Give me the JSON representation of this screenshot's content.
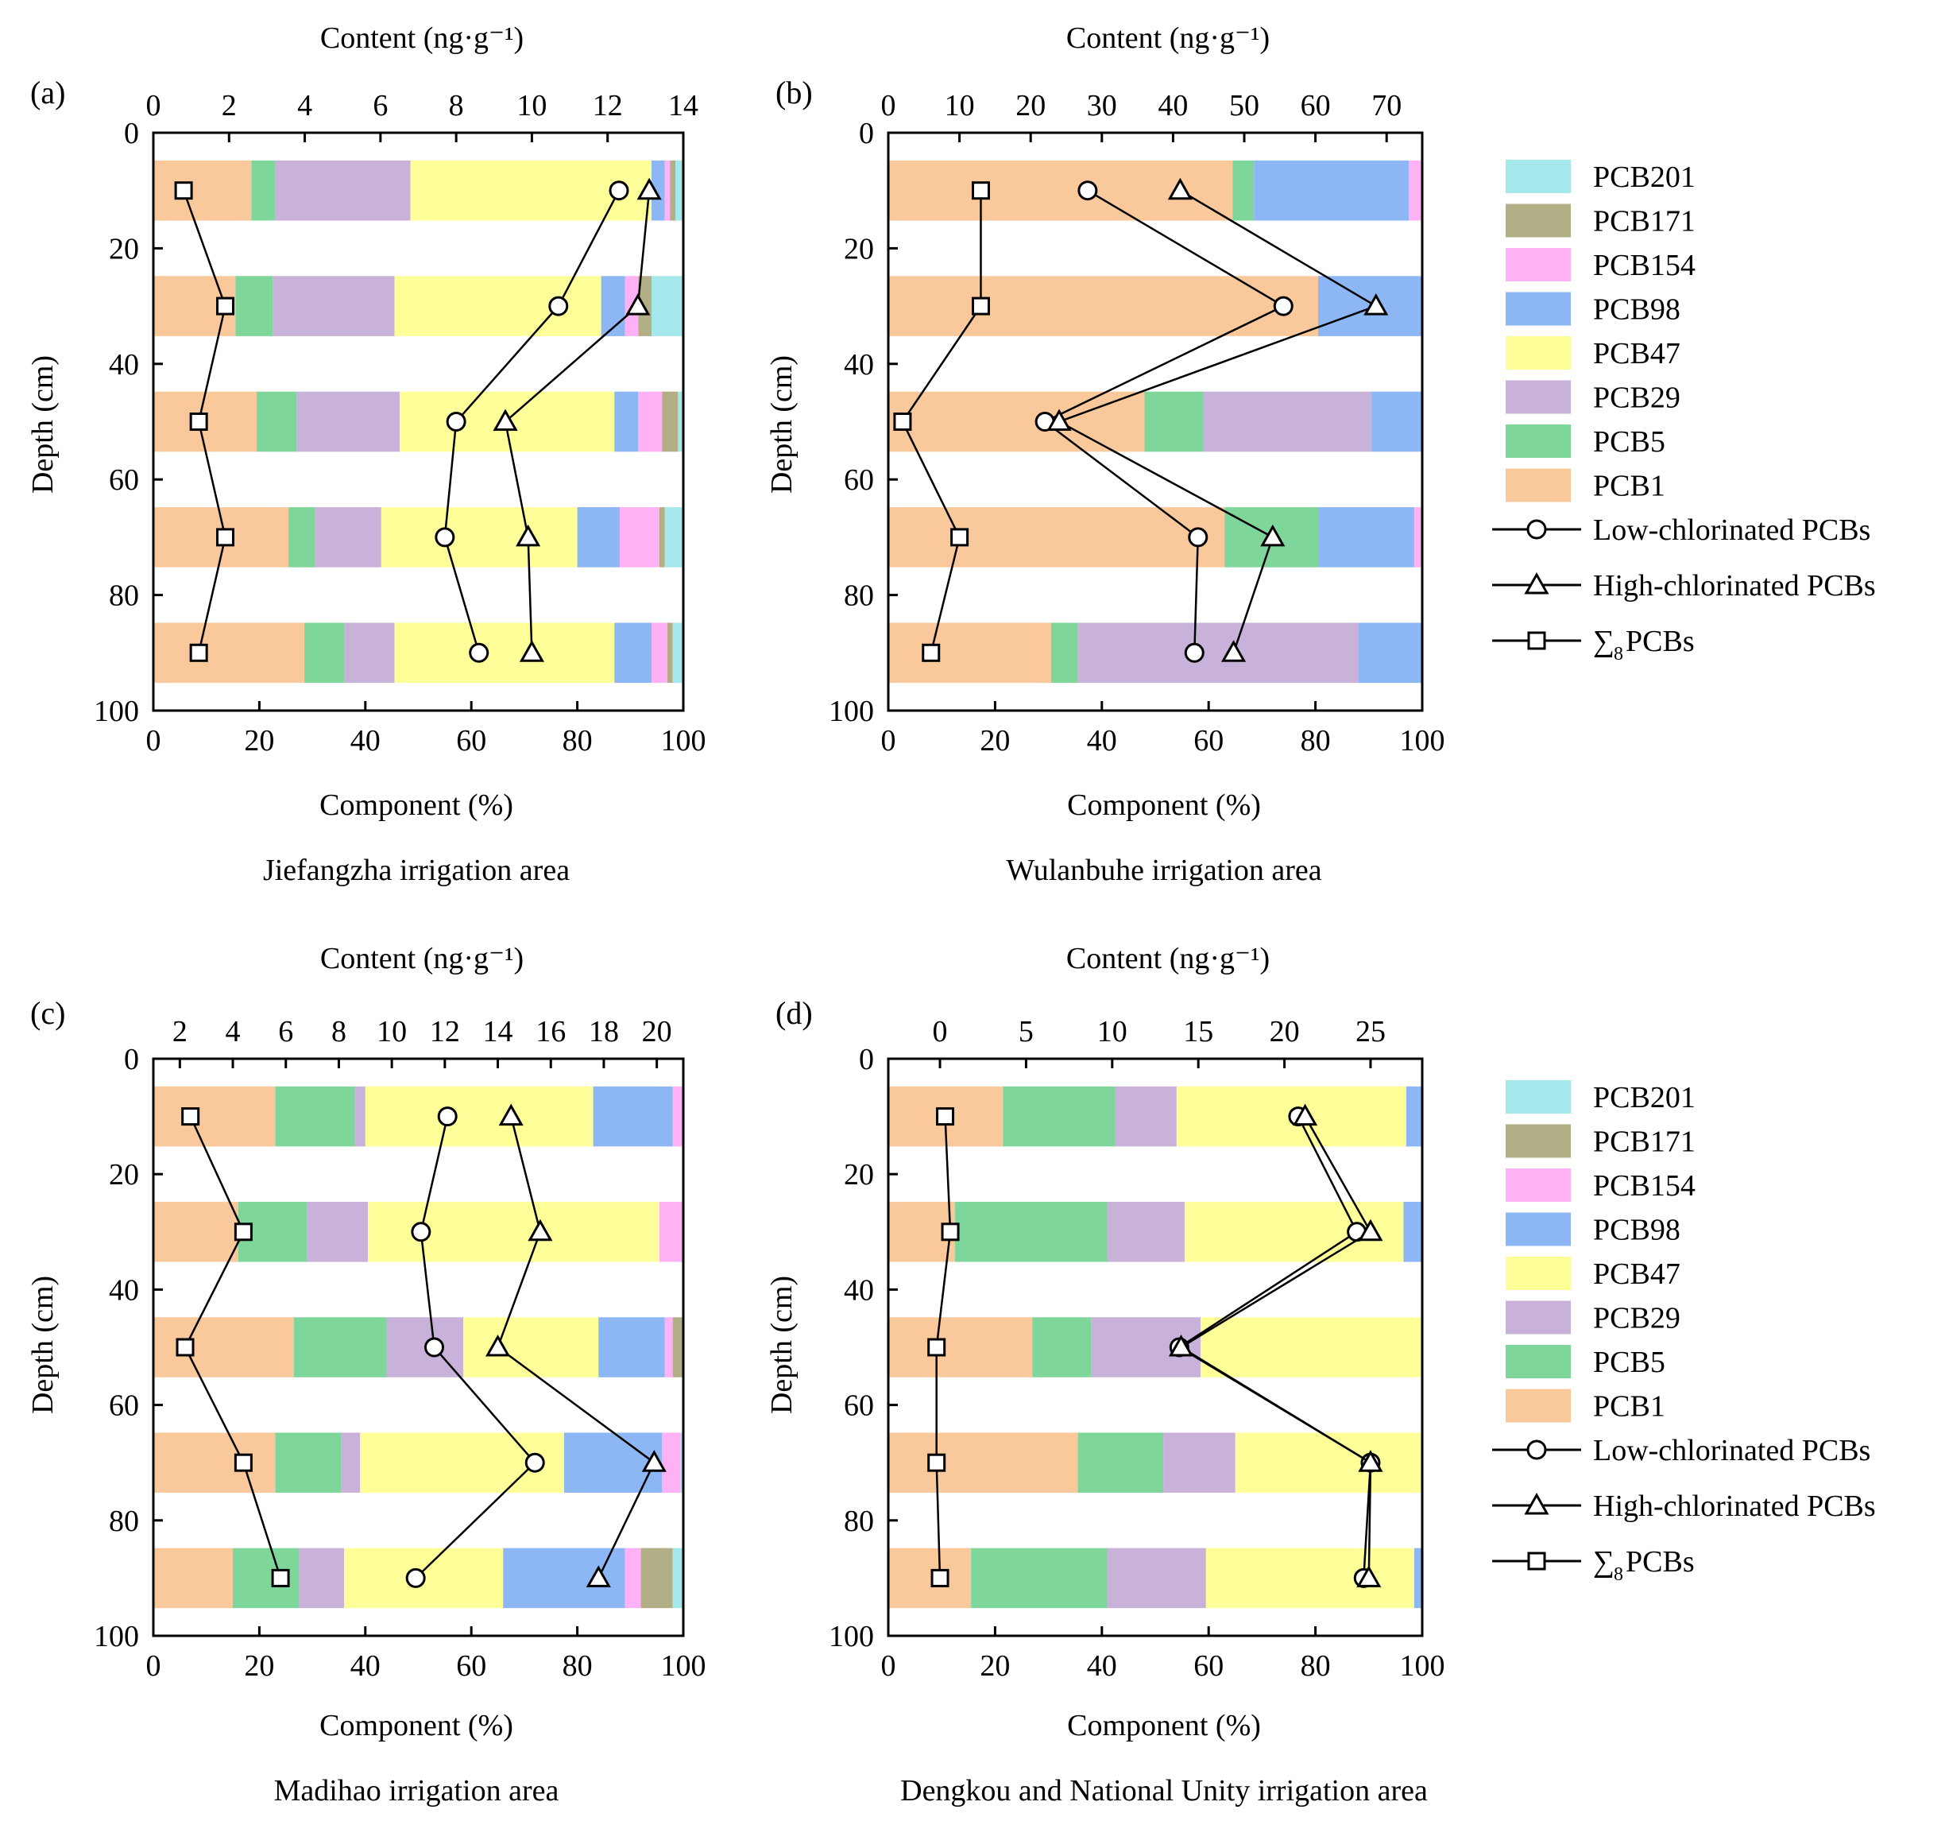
{
  "colors": {
    "PCB1": "#F9C89B",
    "PCB5": "#7FD69A",
    "PCB29": "#C8B2D9",
    "PCB47": "#FFFF9A",
    "PCB98": "#8DB6F4",
    "PCB154": "#FFB1F6",
    "PCB171": "#B2AE86",
    "PCB201": "#A4E8EC"
  },
  "legend": {
    "components": [
      "PCB201",
      "PCB171",
      "PCB154",
      "PCB98",
      "PCB47",
      "PCB29",
      "PCB5",
      "PCB1"
    ],
    "low": "Low-chlorinated PCBs",
    "high": "High-chlorinated PCBs",
    "sum_prefix": "∑",
    "sum_sub": "8",
    "sum_suffix": "PCBs"
  },
  "chart_data": [
    {
      "type": "bar",
      "panel_label": "(a)",
      "title": "Jiefangzha irrigation area",
      "xlabel": "Component (%)",
      "ylabel": "Depth (cm)",
      "top_axis_label": "Content (ng·g⁻¹)",
      "xlim": [
        0,
        100
      ],
      "ylim": [
        0,
        100
      ],
      "top_xlim": [
        0,
        14
      ],
      "x_ticks": [
        0,
        20,
        40,
        60,
        80,
        100
      ],
      "y_ticks": [
        0,
        20,
        40,
        60,
        80,
        100
      ],
      "top_ticks": [
        0,
        2,
        4,
        6,
        8,
        10,
        12,
        14
      ],
      "depths": [
        10,
        30,
        50,
        70,
        90
      ],
      "components": [
        "PCB1",
        "PCB5",
        "PCB29",
        "PCB47",
        "PCB98",
        "PCB154",
        "PCB171",
        "PCB201"
      ],
      "stacked_percent": [
        [
          18.5,
          4.5,
          25.5,
          45.5,
          2.5,
          1.0,
          1.0,
          1.5
        ],
        [
          15.5,
          7.0,
          23.0,
          39.0,
          4.5,
          2.5,
          2.5,
          6.0
        ],
        [
          19.5,
          7.5,
          19.5,
          40.5,
          4.5,
          4.5,
          3.0,
          1.0
        ],
        [
          25.5,
          5.0,
          12.5,
          37.0,
          8.0,
          7.5,
          1.0,
          3.5
        ],
        [
          28.5,
          7.5,
          9.5,
          41.5,
          7.0,
          3.0,
          1.0,
          2.0
        ]
      ],
      "low_chlorinated_content": [
        12.3,
        10.7,
        8.0,
        7.7,
        8.6
      ],
      "high_chlorinated_content": [
        13.1,
        12.8,
        9.3,
        9.9,
        10.0
      ],
      "sum_content": [
        0.8,
        1.9,
        1.2,
        1.9,
        1.2
      ]
    },
    {
      "type": "bar",
      "panel_label": "(b)",
      "title": "Wulanbuhe irrigation area",
      "xlabel": "Component (%)",
      "ylabel": "Depth (cm)",
      "top_axis_label": "Content (ng·g⁻¹)",
      "xlim": [
        0,
        100
      ],
      "ylim": [
        0,
        100
      ],
      "top_xlim": [
        0,
        75
      ],
      "x_ticks": [
        0,
        20,
        40,
        60,
        80,
        100
      ],
      "y_ticks": [
        0,
        20,
        40,
        60,
        80,
        100
      ],
      "top_ticks": [
        0,
        10,
        20,
        30,
        40,
        50,
        60,
        70
      ],
      "depths": [
        10,
        30,
        50,
        70,
        90
      ],
      "components": [
        "PCB1",
        "PCB5",
        "PCB29",
        "PCB47",
        "PCB98",
        "PCB154",
        "PCB171",
        "PCB201"
      ],
      "stacked_percent": [
        [
          64.5,
          4.0,
          0,
          0,
          29.0,
          2.5,
          0,
          0
        ],
        [
          80.5,
          0,
          0,
          0,
          19.5,
          0,
          0,
          0
        ],
        [
          48.0,
          11.0,
          31.5,
          0,
          9.5,
          0,
          0,
          0
        ],
        [
          63.0,
          17.5,
          0,
          0,
          18.0,
          1.5,
          0,
          0
        ],
        [
          30.5,
          5.0,
          52.5,
          0,
          12.0,
          0,
          0,
          0
        ]
      ],
      "low_chlorinated_content": [
        28.0,
        55.5,
        22.0,
        43.5,
        43.0
      ],
      "high_chlorinated_content": [
        41.0,
        68.5,
        24.0,
        54.0,
        48.5
      ],
      "sum_content": [
        13.0,
        13.0,
        2.0,
        10.0,
        6.0
      ]
    },
    {
      "type": "bar",
      "panel_label": "(c)",
      "title": "Madihao irrigation area",
      "xlabel": "Component (%)",
      "ylabel": "Depth (cm)",
      "top_axis_label": "Content (ng·g⁻¹)",
      "xlim": [
        0,
        100
      ],
      "ylim": [
        0,
        100
      ],
      "top_xlim": [
        1,
        21
      ],
      "x_ticks": [
        0,
        20,
        40,
        60,
        80,
        100
      ],
      "y_ticks": [
        0,
        20,
        40,
        60,
        80,
        100
      ],
      "top_ticks": [
        2,
        4,
        6,
        8,
        10,
        12,
        14,
        16,
        18,
        20
      ],
      "depths": [
        10,
        30,
        50,
        70,
        90
      ],
      "components": [
        "PCB1",
        "PCB5",
        "PCB29",
        "PCB47",
        "PCB98",
        "PCB154",
        "PCB171",
        "PCB201"
      ],
      "stacked_percent": [
        [
          23.0,
          15.0,
          2.0,
          43.0,
          15.0,
          2.0,
          0,
          0
        ],
        [
          16.0,
          13.0,
          11.5,
          55.0,
          0,
          4.5,
          0,
          0
        ],
        [
          26.5,
          17.5,
          14.5,
          25.5,
          12.5,
          1.5,
          2.0,
          0
        ],
        [
          23.0,
          12.5,
          3.5,
          38.5,
          18.5,
          3.5,
          0,
          0.5
        ],
        [
          15.0,
          12.5,
          8.5,
          30.0,
          23.0,
          3.0,
          6.0,
          2.0
        ]
      ],
      "low_chlorinated_content": [
        12.1,
        11.1,
        11.6,
        15.4,
        10.9
      ],
      "high_chlorinated_content": [
        14.5,
        15.6,
        14.0,
        19.9,
        17.8
      ],
      "sum_content": [
        2.4,
        4.4,
        2.2,
        4.4,
        5.8
      ]
    },
    {
      "type": "bar",
      "panel_label": "(d)",
      "title": "Dengkou and National Unity irrigation area",
      "xlabel": "Component (%)",
      "ylabel": "Depth (cm)",
      "top_axis_label": "Content (ng·g⁻¹)",
      "xlim": [
        0,
        100
      ],
      "ylim": [
        0,
        100
      ],
      "top_xlim": [
        -3,
        28
      ],
      "x_ticks": [
        0,
        20,
        40,
        60,
        80,
        100
      ],
      "y_ticks": [
        0,
        20,
        40,
        60,
        80,
        100
      ],
      "top_ticks": [
        0,
        5,
        10,
        15,
        20,
        25
      ],
      "depths": [
        10,
        30,
        50,
        70,
        90
      ],
      "components": [
        "PCB1",
        "PCB5",
        "PCB29",
        "PCB47",
        "PCB98",
        "PCB154",
        "PCB171",
        "PCB201"
      ],
      "stacked_percent": [
        [
          21.5,
          21.0,
          11.5,
          43.0,
          3.0,
          0,
          0,
          0
        ],
        [
          12.5,
          28.5,
          14.5,
          41.0,
          3.5,
          0,
          0,
          0
        ],
        [
          27.0,
          11.0,
          20.5,
          41.5,
          0,
          0,
          0,
          0
        ],
        [
          35.5,
          16.0,
          13.5,
          35.0,
          0,
          0,
          0,
          0
        ],
        [
          15.5,
          25.5,
          18.5,
          39.0,
          1.5,
          0,
          0,
          0
        ]
      ],
      "low_chlorinated_content": [
        20.8,
        24.2,
        13.9,
        25.0,
        24.6
      ],
      "high_chlorinated_content": [
        21.2,
        25.0,
        14.0,
        25.0,
        24.9
      ],
      "sum_content": [
        0.3,
        0.6,
        -0.2,
        -0.2,
        0.0
      ]
    }
  ]
}
